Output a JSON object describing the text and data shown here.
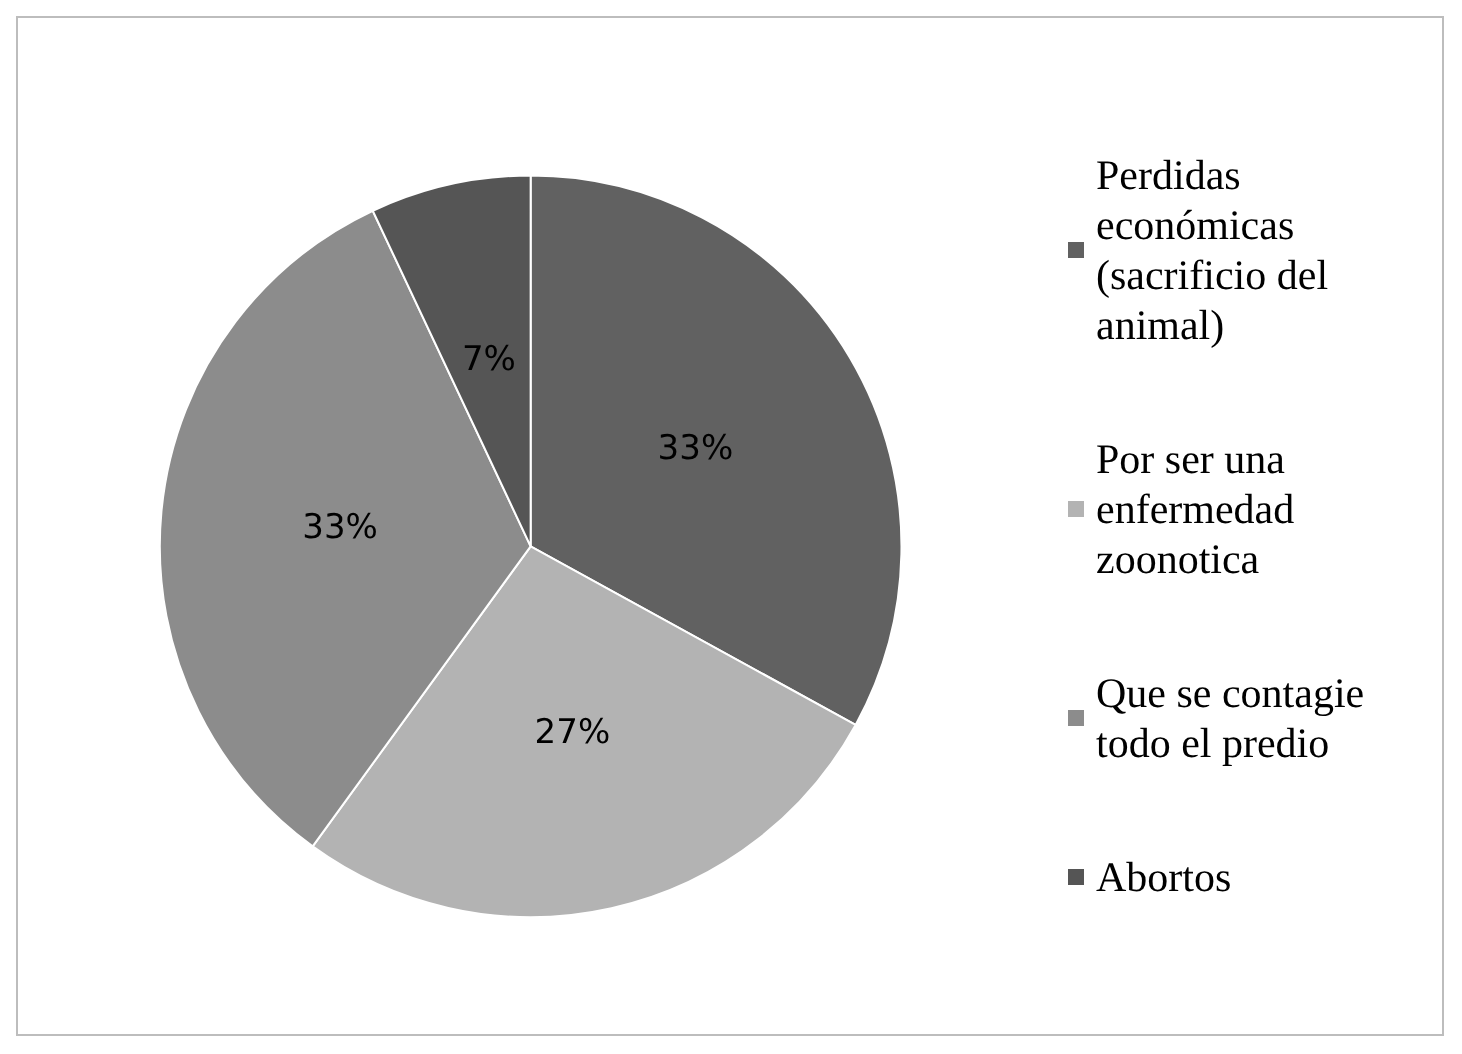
{
  "chart_data": {
    "type": "pie",
    "categories": [
      "Perdidas económicas (sacrificio del animal)",
      "Por ser una enfermedad zoonotica",
      "Que se contagie todo el predio",
      "Abortos"
    ],
    "values": [
      33,
      27,
      33,
      7
    ],
    "colors": [
      "#616161",
      "#b3b3b3",
      "#8c8c8c",
      "#555555"
    ],
    "value_labels": [
      "33%",
      "27%",
      "33%",
      "7%"
    ],
    "legend": "right"
  }
}
